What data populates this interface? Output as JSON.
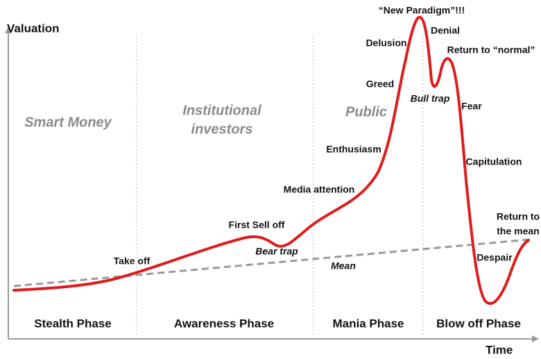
{
  "axes": {
    "y_label": "Valuation",
    "x_label": "Time"
  },
  "phases": [
    "Stealth Phase",
    "Awareness Phase",
    "Mania Phase",
    "Blow off Phase"
  ],
  "zones": [
    {
      "lines": [
        "Smart Money"
      ]
    },
    {
      "lines": [
        "Institutional",
        "investors"
      ]
    },
    {
      "lines": [
        "Public"
      ]
    }
  ],
  "mean_label": "Mean",
  "stages": [
    {
      "lines": [
        "Take off"
      ]
    },
    {
      "lines": [
        "First Sell off"
      ]
    },
    {
      "lines": [
        "Bear trap"
      ]
    },
    {
      "lines": [
        "Media attention"
      ]
    },
    {
      "lines": [
        "Enthusiasm"
      ]
    },
    {
      "lines": [
        "Greed"
      ]
    },
    {
      "lines": [
        "Delusion"
      ]
    },
    {
      "lines": [
        "“New Paradigm”!!!"
      ]
    },
    {
      "lines": [
        "Denial"
      ]
    },
    {
      "lines": [
        "Bull trap"
      ]
    },
    {
      "lines": [
        "Return to “normal”"
      ]
    },
    {
      "lines": [
        "Fear"
      ]
    },
    {
      "lines": [
        "Capitulation"
      ]
    },
    {
      "lines": [
        "Despair"
      ]
    },
    {
      "lines": [
        "Return to",
        "the mean"
      ]
    }
  ]
}
